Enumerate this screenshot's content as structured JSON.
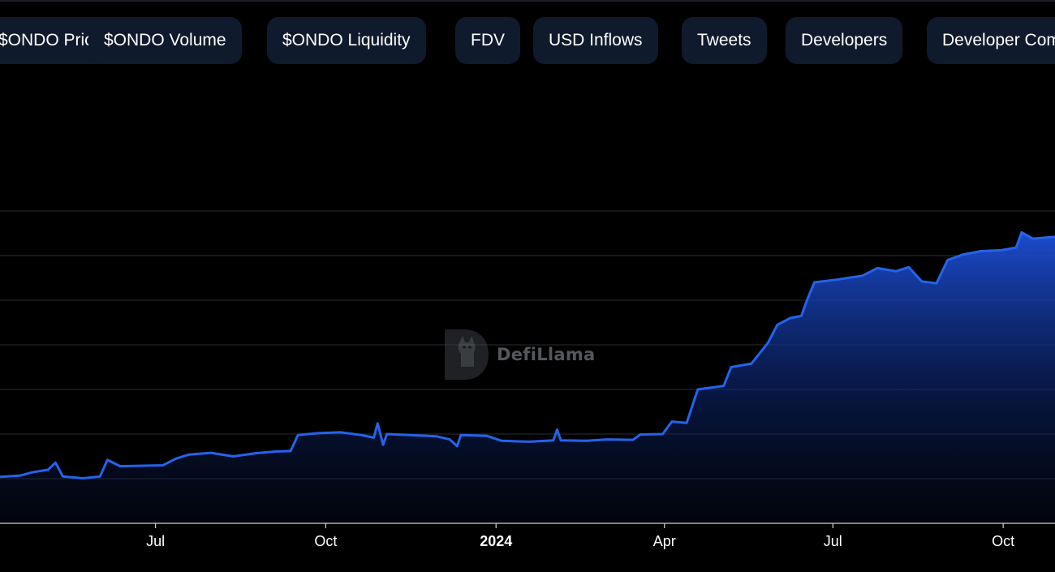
{
  "tabs": [
    {
      "label": "$ONDO Price"
    },
    {
      "label": "$ONDO Volume"
    },
    {
      "label": "$ONDO Liquidity"
    },
    {
      "label": "FDV"
    },
    {
      "label": "USD Inflows"
    },
    {
      "label": "Tweets"
    },
    {
      "label": "Developers"
    },
    {
      "label": "Developer Commits"
    }
  ],
  "watermark": {
    "text": "DefiLlama"
  },
  "colors": {
    "line": "#2463eb",
    "fill_top": "#1d4fd8",
    "grid": "#2a2d33",
    "axis_text": "#ffffff"
  },
  "chart_data": {
    "type": "area",
    "title": "",
    "xlabel": "",
    "ylabel": "",
    "x_ticks": [
      {
        "label": "Jul",
        "bold": false
      },
      {
        "label": "Oct",
        "bold": false
      },
      {
        "label": "2024",
        "bold": true
      },
      {
        "label": "Apr",
        "bold": false
      },
      {
        "label": "Jul",
        "bold": false
      },
      {
        "label": "Oct",
        "bold": false
      }
    ],
    "x_range": [
      "2023-04-08",
      "2024-10-29"
    ],
    "y_range": [
      0,
      7
    ],
    "y_gridlines": [
      1,
      2,
      3,
      4,
      5,
      6,
      7
    ],
    "y_tick_labels_visible": false,
    "grid": true,
    "series": [
      {
        "values": [
          [
            "2023-04-08",
            1.04
          ],
          [
            "2023-04-19",
            1.07
          ],
          [
            "2023-04-26",
            1.15
          ],
          [
            "2023-05-04",
            1.2
          ],
          [
            "2023-05-08",
            1.36
          ],
          [
            "2023-05-12",
            1.05
          ],
          [
            "2023-05-23",
            1.01
          ],
          [
            "2023-06-01",
            1.05
          ],
          [
            "2023-06-05",
            1.42
          ],
          [
            "2023-06-12",
            1.28
          ],
          [
            "2023-07-05",
            1.3
          ],
          [
            "2023-07-12",
            1.45
          ],
          [
            "2023-07-19",
            1.54
          ],
          [
            "2023-07-31",
            1.58
          ],
          [
            "2023-08-12",
            1.5
          ],
          [
            "2023-08-24",
            1.57
          ],
          [
            "2023-09-04",
            1.61
          ],
          [
            "2023-09-12",
            1.62
          ],
          [
            "2023-09-16",
            1.98
          ],
          [
            "2023-09-27",
            2.02
          ],
          [
            "2023-10-09",
            2.04
          ],
          [
            "2023-10-20",
            1.98
          ],
          [
            "2023-10-27",
            1.92
          ],
          [
            "2023-10-29",
            2.24
          ],
          [
            "2023-11-01",
            1.76
          ],
          [
            "2023-11-03",
            2.0
          ],
          [
            "2023-11-19",
            1.97
          ],
          [
            "2023-11-30",
            1.95
          ],
          [
            "2023-12-07",
            1.88
          ],
          [
            "2023-12-11",
            1.73
          ],
          [
            "2023-12-13",
            1.98
          ],
          [
            "2023-12-27",
            1.96
          ],
          [
            "2024-01-04",
            1.85
          ],
          [
            "2024-01-19",
            1.83
          ],
          [
            "2024-02-01",
            1.86
          ],
          [
            "2024-02-03",
            2.1
          ],
          [
            "2024-02-05",
            1.86
          ],
          [
            "2024-02-19",
            1.85
          ],
          [
            "2024-03-01",
            1.88
          ],
          [
            "2024-03-15",
            1.87
          ],
          [
            "2024-03-19",
            1.99
          ],
          [
            "2024-03-31",
            2.0
          ],
          [
            "2024-04-05",
            2.28
          ],
          [
            "2024-04-13",
            2.25
          ],
          [
            "2024-04-19",
            3.0
          ],
          [
            "2024-05-03",
            3.08
          ],
          [
            "2024-05-07",
            3.5
          ],
          [
            "2024-05-18",
            3.58
          ],
          [
            "2024-05-27",
            4.05
          ],
          [
            "2024-06-01",
            4.45
          ],
          [
            "2024-06-08",
            4.6
          ],
          [
            "2024-06-14",
            4.65
          ],
          [
            "2024-06-17",
            5.0
          ],
          [
            "2024-06-21",
            5.4
          ],
          [
            "2024-07-01",
            5.45
          ],
          [
            "2024-07-17",
            5.55
          ],
          [
            "2024-07-25",
            5.72
          ],
          [
            "2024-08-04",
            5.65
          ],
          [
            "2024-08-11",
            5.74
          ],
          [
            "2024-08-18",
            5.42
          ],
          [
            "2024-08-26",
            5.38
          ],
          [
            "2024-09-01",
            5.9
          ],
          [
            "2024-09-09",
            6.02
          ],
          [
            "2024-09-19",
            6.1
          ],
          [
            "2024-09-30",
            6.12
          ],
          [
            "2024-10-08",
            6.18
          ],
          [
            "2024-10-11",
            6.52
          ],
          [
            "2024-10-17",
            6.38
          ],
          [
            "2024-10-29",
            6.42
          ]
        ]
      }
    ],
    "legend": "none"
  }
}
